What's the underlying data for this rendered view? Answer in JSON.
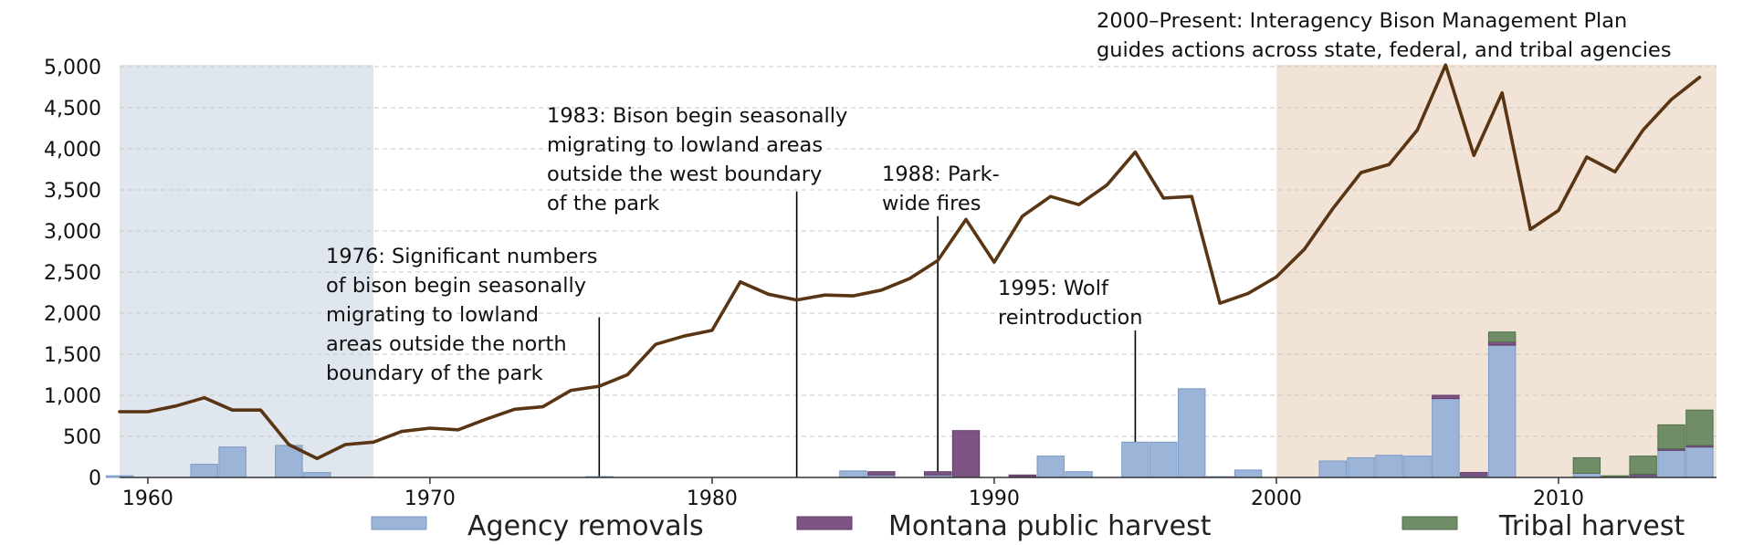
{
  "chart_data": {
    "type": "bar+line",
    "title": "",
    "xlabel": "",
    "ylabel": "",
    "xlim": [
      1959,
      2015.6
    ],
    "ylim": [
      0,
      5000
    ],
    "grid": "horizontal dashed",
    "y_ticks": [
      {
        "value": 0,
        "label": "0"
      },
      {
        "value": 500,
        "label": "500"
      },
      {
        "value": 1000,
        "label": "1,000"
      },
      {
        "value": 1500,
        "label": "1,500"
      },
      {
        "value": 2000,
        "label": "2,000"
      },
      {
        "value": 2500,
        "label": "2,500"
      },
      {
        "value": 3000,
        "label": "3,000"
      },
      {
        "value": 3500,
        "label": "3,500"
      },
      {
        "value": 4000,
        "label": "4,000"
      },
      {
        "value": 4500,
        "label": "4,500"
      },
      {
        "value": 5000,
        "label": "5,000"
      }
    ],
    "x_ticks": [
      {
        "value": 1960,
        "label": "1960"
      },
      {
        "value": 1970,
        "label": "1970"
      },
      {
        "value": 1980,
        "label": "1980"
      },
      {
        "value": 1990,
        "label": "1990"
      },
      {
        "value": 2000,
        "label": "2000"
      },
      {
        "value": 2010,
        "label": "2010"
      }
    ],
    "shaded_periods": [
      {
        "start": 1959,
        "end": 1968,
        "color": "#dfe6ee"
      },
      {
        "start": 2000,
        "end": 2015.6,
        "color": "#f1e3d5"
      }
    ],
    "population_line": {
      "color": "#5a3514",
      "points": [
        [
          1959,
          800
        ],
        [
          1960,
          800
        ],
        [
          1961,
          870
        ],
        [
          1962,
          970
        ],
        [
          1963,
          820
        ],
        [
          1964,
          820
        ],
        [
          1965,
          400
        ],
        [
          1966,
          230
        ],
        [
          1967,
          400
        ],
        [
          1968,
          430
        ],
        [
          1969,
          560
        ],
        [
          1970,
          600
        ],
        [
          1971,
          580
        ],
        [
          1972,
          710
        ],
        [
          1973,
          830
        ],
        [
          1974,
          860
        ],
        [
          1975,
          1060
        ],
        [
          1976,
          1110
        ],
        [
          1977,
          1250
        ],
        [
          1978,
          1620
        ],
        [
          1979,
          1720
        ],
        [
          1980,
          1790
        ],
        [
          1981,
          2380
        ],
        [
          1982,
          2230
        ],
        [
          1983,
          2160
        ],
        [
          1984,
          2220
        ],
        [
          1985,
          2210
        ],
        [
          1986,
          2280
        ],
        [
          1987,
          2420
        ],
        [
          1988,
          2640
        ],
        [
          1989,
          3140
        ],
        [
          1990,
          2620
        ],
        [
          1991,
          3180
        ],
        [
          1992,
          3420
        ],
        [
          1993,
          3320
        ],
        [
          1994,
          3560
        ],
        [
          1995,
          3960
        ],
        [
          1996,
          3400
        ],
        [
          1997,
          3420
        ],
        [
          1998,
          2120
        ],
        [
          1999,
          2240
        ],
        [
          2000,
          2440
        ],
        [
          2001,
          2780
        ],
        [
          2002,
          3270
        ],
        [
          2003,
          3710
        ],
        [
          2004,
          3810
        ],
        [
          2005,
          4230
        ],
        [
          2006,
          5020
        ],
        [
          2007,
          3920
        ],
        [
          2008,
          4680
        ],
        [
          2009,
          3020
        ],
        [
          2010,
          3250
        ],
        [
          2011,
          3900
        ],
        [
          2012,
          3720
        ],
        [
          2013,
          4230
        ],
        [
          2014,
          4600
        ],
        [
          2015,
          4870
        ]
      ]
    },
    "series": [
      {
        "name": "Agency removals",
        "color": "#9bb4d8",
        "edge": "#7a98c4",
        "values": [
          [
            1959,
            20
          ],
          [
            1962,
            160
          ],
          [
            1963,
            370
          ],
          [
            1965,
            390
          ],
          [
            1966,
            60
          ],
          [
            1976,
            10
          ],
          [
            1985,
            80
          ],
          [
            1986,
            30
          ],
          [
            1988,
            30
          ],
          [
            1991,
            10
          ],
          [
            1992,
            260
          ],
          [
            1993,
            70
          ],
          [
            1995,
            430
          ],
          [
            1996,
            430
          ],
          [
            1997,
            1080
          ],
          [
            1998,
            10
          ],
          [
            1999,
            90
          ],
          [
            2002,
            200
          ],
          [
            2003,
            240
          ],
          [
            2004,
            270
          ],
          [
            2005,
            260
          ],
          [
            2006,
            960
          ],
          [
            2007,
            20
          ],
          [
            2008,
            1610
          ],
          [
            2011,
            50
          ],
          [
            2013,
            20
          ],
          [
            2014,
            330
          ],
          [
            2015,
            370
          ]
        ]
      },
      {
        "name": "Montana public harvest",
        "color": "#7e5485",
        "edge": "#5e3a66",
        "values": [
          [
            1986,
            40
          ],
          [
            1988,
            40
          ],
          [
            1989,
            570
          ],
          [
            1991,
            20
          ],
          [
            2006,
            40
          ],
          [
            2007,
            40
          ],
          [
            2008,
            40
          ],
          [
            2013,
            20
          ],
          [
            2014,
            20
          ],
          [
            2015,
            20
          ]
        ]
      },
      {
        "name": "Tribal harvest",
        "color": "#6f8e68",
        "edge": "#526e4e",
        "values": [
          [
            2008,
            120
          ],
          [
            2011,
            190
          ],
          [
            2012,
            20
          ],
          [
            2013,
            220
          ],
          [
            2014,
            290
          ],
          [
            2015,
            430
          ]
        ]
      }
    ],
    "annotations": [
      {
        "lines": [
          "1976: Significant numbers",
          "of bison begin seasonally",
          "migrating to lowland",
          "areas outside the north",
          "boundary of the park"
        ],
        "marker_year": 1976,
        "marker_top": 1950
      },
      {
        "lines": [
          "1983: Bison begin seasonally",
          "migrating to lowland areas",
          "outside the west boundary",
          "of the park"
        ],
        "marker_year": 1983,
        "marker_top": 3480
      },
      {
        "lines": [
          "1988: Park-",
          "wide fires"
        ],
        "marker_year": 1988,
        "marker_top": 3180
      },
      {
        "lines": [
          "1995: Wolf",
          "reintroduction"
        ],
        "marker_year": 1995,
        "marker_top": 1790
      },
      {
        "lines": [
          "2000–Present: Interagency Bison Management Plan",
          "guides actions across state, federal, and tribal agencies"
        ],
        "marker_year": null,
        "marker_top": null
      }
    ],
    "legend": {
      "position": "bottom",
      "entries": [
        "Agency removals",
        "Montana public harvest",
        "Tribal harvest"
      ]
    }
  }
}
